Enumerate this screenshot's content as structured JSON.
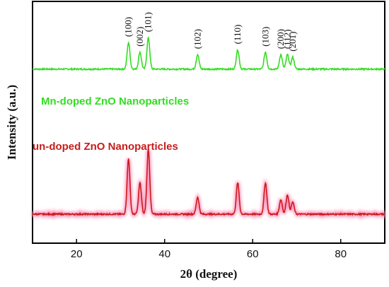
{
  "chart_data": {
    "type": "line",
    "xlabel": "2θ (degree)",
    "ylabel": "Intensity (a.u.)",
    "xlim": [
      10,
      90
    ],
    "x_ticks": [
      20,
      40,
      60,
      80
    ],
    "y_ticks": false,
    "grid": false,
    "colors": {
      "doped": "#33dd22",
      "undoped": "#c81c1c",
      "undoped_glow": "#ff9ac0"
    },
    "series": [
      {
        "name": "Mn-doped ZnO Nanoparticles",
        "baseline": 0.72,
        "peaks": [
          {
            "two_theta": 31.8,
            "height": 0.11,
            "label": "(100)"
          },
          {
            "two_theta": 34.4,
            "height": 0.07,
            "label": "(002)"
          },
          {
            "two_theta": 36.3,
            "height": 0.13,
            "label": "(101)"
          },
          {
            "two_theta": 47.5,
            "height": 0.06,
            "label": "(102)"
          },
          {
            "two_theta": 56.6,
            "height": 0.08,
            "label": "(110)"
          },
          {
            "two_theta": 62.9,
            "height": 0.07,
            "label": "(103)"
          },
          {
            "two_theta": 66.4,
            "height": 0.06,
            "label": "(200)"
          },
          {
            "two_theta": 67.9,
            "height": 0.06,
            "label": "(112)"
          },
          {
            "two_theta": 69.1,
            "height": 0.05,
            "label": "(201)"
          }
        ]
      },
      {
        "name": "un-doped ZnO Nanoparticles",
        "baseline": 0.12,
        "peaks": [
          {
            "two_theta": 31.8,
            "height": 0.23
          },
          {
            "two_theta": 34.4,
            "height": 0.13
          },
          {
            "two_theta": 36.3,
            "height": 0.27
          },
          {
            "two_theta": 47.5,
            "height": 0.07
          },
          {
            "two_theta": 56.6,
            "height": 0.13
          },
          {
            "two_theta": 62.9,
            "height": 0.13
          },
          {
            "two_theta": 66.4,
            "height": 0.06
          },
          {
            "two_theta": 67.9,
            "height": 0.08
          },
          {
            "two_theta": 69.1,
            "height": 0.05
          }
        ]
      }
    ]
  }
}
